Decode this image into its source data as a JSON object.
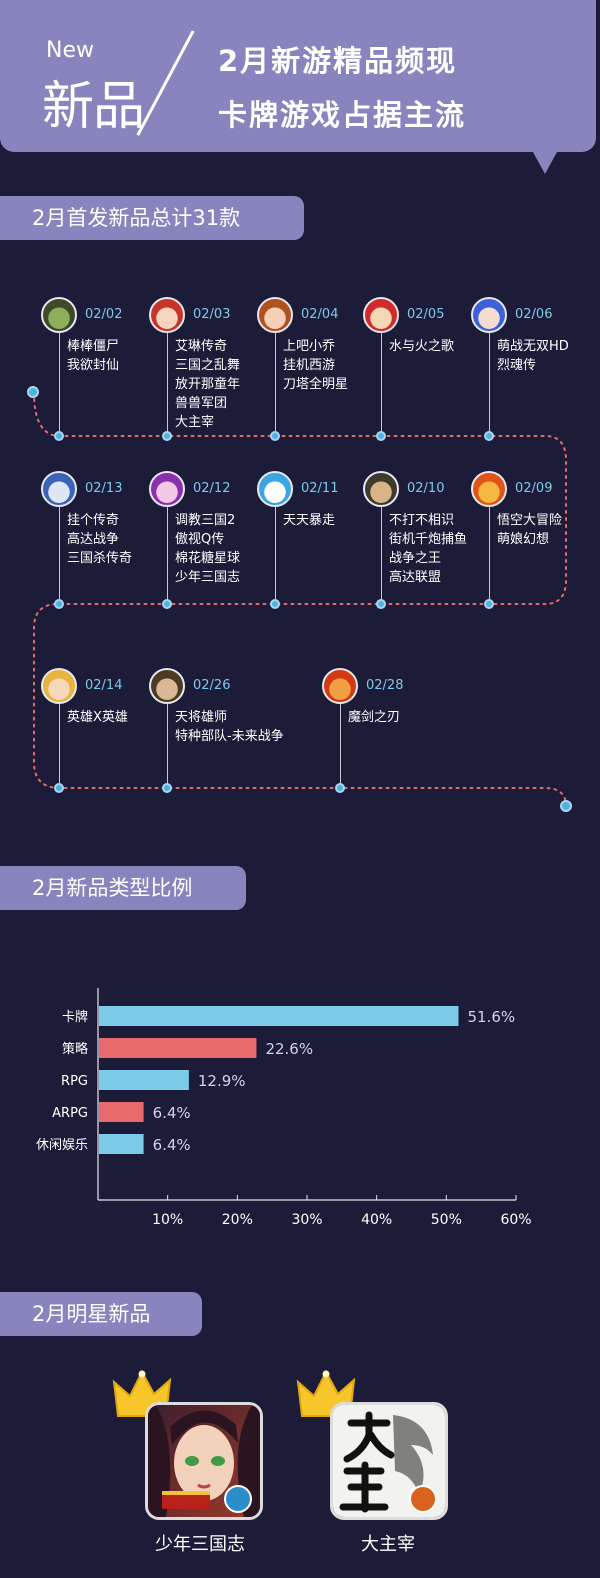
{
  "header": {
    "tag_en": "New",
    "tag_cn": "新品",
    "title_line1": "2月新游精品频现",
    "title_line2": "卡牌游戏占据主流"
  },
  "sections": {
    "launches": "2月首发新品总计31款",
    "ratio": "2月新品类型比例",
    "stars": "2月明星新品"
  },
  "timeline": {
    "row1": [
      {
        "date": "02/02",
        "games": [
          "棒棒僵尸",
          "我欲封仙"
        ],
        "icon": "zombie-avatar-icon"
      },
      {
        "date": "02/03",
        "games": [
          "艾琳传奇",
          "三国之乱舞",
          "放开那童年",
          "兽兽军团",
          "大主宰"
        ],
        "icon": "redhair-avatar-icon"
      },
      {
        "date": "02/04",
        "games": [
          "上吧小乔",
          "挂机西游",
          "刀塔全明星"
        ],
        "icon": "girl-avatar-icon"
      },
      {
        "date": "02/05",
        "games": [
          "水与火之歌"
        ],
        "icon": "pirate-avatar-icon"
      },
      {
        "date": "02/06",
        "games": [
          "萌战无双HD",
          "烈魂传"
        ],
        "icon": "bluehair-avatar-icon"
      }
    ],
    "row2": [
      {
        "date": "02/13",
        "games": [
          "挂个传奇",
          "高达战争",
          "三国杀传奇"
        ],
        "icon": "robot-avatar-icon"
      },
      {
        "date": "02/12",
        "games": [
          "调教三国2",
          "傲视Q传",
          "棉花糖星球",
          "少年三国志"
        ],
        "icon": "purple-avatar-icon"
      },
      {
        "date": "02/11",
        "games": [
          "天天暴走"
        ],
        "icon": "cartoon-avatar-icon"
      },
      {
        "date": "02/10",
        "games": [
          "不打不相识",
          "街机千炮捕鱼",
          "战争之王",
          "高达联盟"
        ],
        "icon": "soldier-avatar-icon"
      },
      {
        "date": "02/09",
        "games": [
          "悟空大冒险",
          "萌娘幻想"
        ],
        "icon": "monkey-avatar-icon"
      }
    ],
    "row3": [
      {
        "date": "02/14",
        "games": [
          "英雄X英雄"
        ],
        "icon": "blonde-avatar-icon"
      },
      {
        "date": "02/26",
        "games": [
          "天将雄师",
          "特种部队-未来战争"
        ],
        "icon": "warrior-avatar-icon"
      },
      {
        "date": "02/28",
        "games": [
          "魔剑之刃"
        ],
        "icon": "flame-avatar-icon"
      }
    ]
  },
  "chart_data": {
    "type": "bar",
    "orientation": "horizontal",
    "categories": [
      "卡牌",
      "策略",
      "RPG",
      "ARPG",
      "休闲娱乐"
    ],
    "values": [
      51.6,
      22.6,
      12.9,
      6.4,
      6.4
    ],
    "value_labels": [
      "51.6%",
      "22.6%",
      "12.9%",
      "6.4%",
      "6.4%"
    ],
    "bar_colors": [
      "#7ccbe9",
      "#e96a6a",
      "#7ccbe9",
      "#e96a6a",
      "#7ccbe9"
    ],
    "xticks": [
      "10%",
      "20%",
      "30%",
      "40%",
      "50%",
      "60%"
    ],
    "xlim": [
      0,
      60
    ],
    "grid": false,
    "legend": "none"
  },
  "stars": [
    {
      "name": "少年三国志",
      "icon": "shaonian-sanguozhi-app-icon"
    },
    {
      "name": "大主宰",
      "icon": "dazhuzai-app-icon"
    }
  ],
  "colors": {
    "background": "#1c1b38",
    "accent": "#8784be",
    "date": "#7ec9ea",
    "dotted_path": "#e96a6a"
  }
}
